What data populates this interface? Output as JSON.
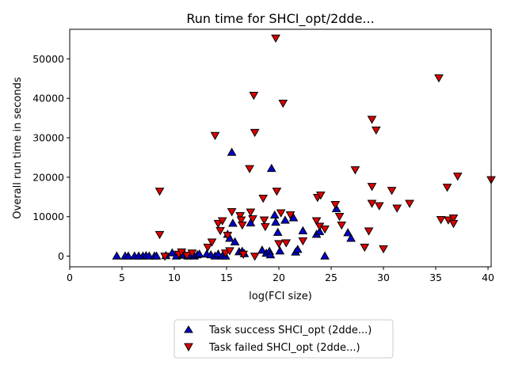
{
  "chart_data": {
    "type": "scatter",
    "title": "Run time for SHCI_opt/2dde...",
    "xlabel": "log(FCI size)",
    "ylabel": "Overall run time in seconds",
    "xlim": [
      0,
      40.3
    ],
    "ylim": [
      -2700,
      57500
    ],
    "x_ticks": [
      "0",
      "5",
      "10",
      "15",
      "20",
      "25",
      "30",
      "35",
      "40"
    ],
    "y_ticks": [
      "0",
      "10000",
      "20000",
      "30000",
      "40000",
      "50000"
    ],
    "grid": false,
    "legend_position": "below-plot",
    "series": [
      {
        "name": "Task success SHCI_opt (2dde...)",
        "marker": "triangle-up",
        "color": "#0000cc",
        "points": [
          [
            4.5,
            0
          ],
          [
            5.3,
            0
          ],
          [
            5.6,
            0
          ],
          [
            6.2,
            0
          ],
          [
            6.6,
            0
          ],
          [
            7.0,
            0
          ],
          [
            7.3,
            100
          ],
          [
            7.6,
            0
          ],
          [
            8.1,
            0
          ],
          [
            8.3,
            0
          ],
          [
            9.2,
            100
          ],
          [
            9.8,
            800
          ],
          [
            10.2,
            0
          ],
          [
            10.8,
            200
          ],
          [
            11.0,
            400
          ],
          [
            11.3,
            0
          ],
          [
            11.6,
            200
          ],
          [
            11.9,
            0
          ],
          [
            12.2,
            300
          ],
          [
            12.4,
            500
          ],
          [
            13.1,
            500
          ],
          [
            13.5,
            300
          ],
          [
            13.9,
            0
          ],
          [
            14.2,
            500
          ],
          [
            14.6,
            0
          ],
          [
            14.9,
            0
          ],
          [
            15.1,
            5500
          ],
          [
            15.3,
            4500
          ],
          [
            15.5,
            26300
          ],
          [
            15.6,
            8300
          ],
          [
            15.8,
            3600
          ],
          [
            16.2,
            1100
          ],
          [
            16.5,
            1200
          ],
          [
            16.7,
            600
          ],
          [
            17.3,
            8400
          ],
          [
            18.4,
            1500
          ],
          [
            18.8,
            700
          ],
          [
            19.1,
            1200
          ],
          [
            19.2,
            300
          ],
          [
            19.3,
            22200
          ],
          [
            19.6,
            10400
          ],
          [
            19.7,
            8600
          ],
          [
            19.9,
            6000
          ],
          [
            20.1,
            1300
          ],
          [
            20.6,
            9100
          ],
          [
            21.4,
            9700
          ],
          [
            21.6,
            1000
          ],
          [
            21.8,
            1700
          ],
          [
            22.3,
            6400
          ],
          [
            23.6,
            5500
          ],
          [
            23.9,
            6200
          ],
          [
            24.4,
            0
          ],
          [
            25.5,
            12000
          ],
          [
            26.6,
            5900
          ],
          [
            26.9,
            4500
          ]
        ]
      },
      {
        "name": "Task failed SHCI_opt (2dde...)",
        "marker": "triangle-down",
        "color": "#dd0000",
        "points": [
          [
            8.6,
            16500
          ],
          [
            8.6,
            5500
          ],
          [
            9.1,
            0
          ],
          [
            10.4,
            500
          ],
          [
            10.7,
            1100
          ],
          [
            11.2,
            200
          ],
          [
            11.7,
            800
          ],
          [
            13.2,
            2300
          ],
          [
            13.6,
            3600
          ],
          [
            13.9,
            30600
          ],
          [
            14.2,
            8300
          ],
          [
            14.4,
            6500
          ],
          [
            14.6,
            9000
          ],
          [
            14.9,
            800
          ],
          [
            15.1,
            5300
          ],
          [
            15.3,
            1400
          ],
          [
            15.5,
            11300
          ],
          [
            16.3,
            10300
          ],
          [
            16.4,
            9200
          ],
          [
            16.5,
            7900
          ],
          [
            16.6,
            500
          ],
          [
            17.2,
            22200
          ],
          [
            17.3,
            11200
          ],
          [
            17.5,
            9500
          ],
          [
            17.6,
            40800
          ],
          [
            17.7,
            31400
          ],
          [
            17.7,
            0
          ],
          [
            18.5,
            14700
          ],
          [
            18.6,
            9200
          ],
          [
            18.7,
            7500
          ],
          [
            19.7,
            55300
          ],
          [
            19.8,
            16500
          ],
          [
            20.0,
            3200
          ],
          [
            20.2,
            11000
          ],
          [
            20.4,
            38800
          ],
          [
            20.7,
            3400
          ],
          [
            21.1,
            10500
          ],
          [
            22.3,
            3900
          ],
          [
            23.6,
            9000
          ],
          [
            23.7,
            14900
          ],
          [
            23.9,
            7600
          ],
          [
            24.0,
            15500
          ],
          [
            24.4,
            6900
          ],
          [
            25.4,
            13100
          ],
          [
            25.8,
            10100
          ],
          [
            26.0,
            7900
          ],
          [
            27.3,
            21900
          ],
          [
            28.2,
            2300
          ],
          [
            28.6,
            6400
          ],
          [
            28.9,
            34700
          ],
          [
            28.9,
            17700
          ],
          [
            28.9,
            13400
          ],
          [
            29.3,
            32000
          ],
          [
            29.6,
            12800
          ],
          [
            30.0,
            1900
          ],
          [
            30.8,
            16700
          ],
          [
            31.3,
            12200
          ],
          [
            32.5,
            13400
          ],
          [
            35.3,
            45200
          ],
          [
            35.5,
            9300
          ],
          [
            36.1,
            17500
          ],
          [
            36.2,
            9200
          ],
          [
            36.7,
            9700
          ],
          [
            36.7,
            8300
          ],
          [
            37.1,
            20300
          ],
          [
            40.3,
            19400
          ]
        ]
      }
    ]
  }
}
